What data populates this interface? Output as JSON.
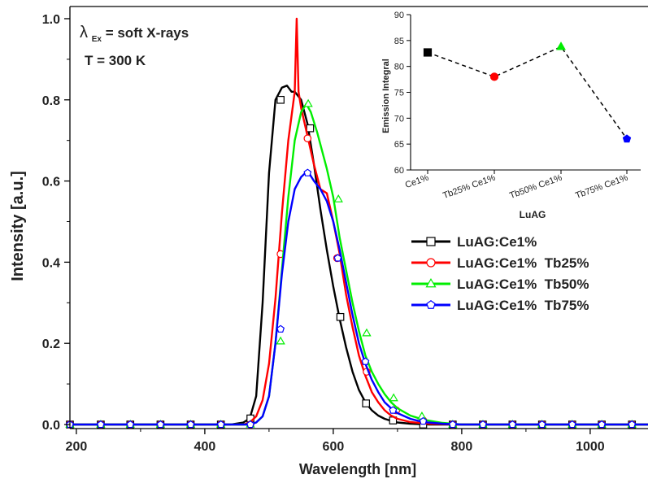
{
  "chart_data": [
    {
      "type": "line",
      "xlabel": "Wavelength [nm]",
      "ylabel": "Intensity [a.u.]",
      "xlim": [
        190,
        1090
      ],
      "ylim": [
        -0.01,
        1.03
      ],
      "xticks": [
        200,
        400,
        600,
        800,
        1000
      ],
      "yticks": [
        0.0,
        0.2,
        0.4,
        0.6,
        0.8,
        1.0
      ],
      "ytick_labels": [
        "0.0",
        "0.2",
        "0.4",
        "0.6",
        "0.8",
        "1.0"
      ],
      "annotations": {
        "excitation_symbol": "λ",
        "excitation_sub": "Ex",
        "excitation_rest": "= soft X-rays",
        "temperature": "T = 300 K"
      },
      "legend_position": "center-right",
      "grid": false,
      "series": [
        {
          "name": "LuAG:Ce1%",
          "color": "#000000",
          "marker": "square",
          "x": [
            190,
            440,
            460,
            470,
            480,
            490,
            500,
            510,
            520,
            528,
            535,
            540,
            550,
            560,
            570,
            580,
            590,
            600,
            610,
            620,
            630,
            640,
            650,
            660,
            670,
            680,
            690,
            700,
            720,
            750,
            800,
            1090
          ],
          "y": [
            0.0,
            0.0,
            0.005,
            0.015,
            0.07,
            0.3,
            0.62,
            0.8,
            0.83,
            0.835,
            0.82,
            0.82,
            0.8,
            0.74,
            0.64,
            0.53,
            0.43,
            0.34,
            0.26,
            0.19,
            0.13,
            0.085,
            0.055,
            0.035,
            0.022,
            0.014,
            0.009,
            0.005,
            0.002,
            0.0,
            0.0,
            0.0
          ],
          "marker_x": [
            190,
            238,
            284,
            331,
            378,
            425,
            471,
            518,
            564,
            611,
            651,
            693,
            740,
            786,
            833,
            879,
            925,
            972,
            1018,
            1065
          ],
          "marker_y": [
            0.0,
            0.0,
            0.0,
            0.0,
            0.0,
            0.0,
            0.015,
            0.8,
            0.73,
            0.265,
            0.052,
            0.01,
            0.0,
            0.0,
            0.0,
            0.0,
            0.0,
            0.0,
            0.0,
            0.0
          ]
        },
        {
          "name": "LuAG:Ce1%  Tb25%",
          "color": "#ff0000",
          "marker": "circle",
          "x": [
            190,
            460,
            470,
            480,
            490,
            500,
            510,
            520,
            530,
            540,
            543,
            546,
            550,
            560,
            570,
            580,
            590,
            600,
            610,
            620,
            630,
            640,
            650,
            660,
            670,
            680,
            690,
            700,
            720,
            750,
            800,
            1090
          ],
          "y": [
            0.0,
            0.0,
            0.005,
            0.02,
            0.06,
            0.15,
            0.31,
            0.52,
            0.7,
            0.82,
            1.0,
            0.82,
            0.78,
            0.71,
            0.64,
            0.58,
            0.57,
            0.5,
            0.42,
            0.32,
            0.24,
            0.17,
            0.12,
            0.08,
            0.055,
            0.035,
            0.022,
            0.014,
            0.006,
            0.002,
            0.0,
            0.0
          ],
          "marker_x": [
            190,
            238,
            284,
            331,
            378,
            425,
            471,
            518,
            560,
            606,
            652,
            698,
            740,
            786,
            833,
            879,
            925,
            972,
            1018,
            1065
          ],
          "marker_y": [
            0.0,
            0.0,
            0.0,
            0.0,
            0.0,
            0.0,
            0.0,
            0.42,
            0.705,
            0.41,
            0.13,
            0.035,
            0.01,
            0.0,
            0.0,
            0.0,
            0.0,
            0.0,
            0.0,
            0.0
          ]
        },
        {
          "name": "LuAG:Ce1%  Tb50%",
          "color": "#00ee00",
          "marker": "triangle",
          "x": [
            190,
            470,
            480,
            490,
            500,
            510,
            520,
            530,
            540,
            550,
            558,
            565,
            575,
            590,
            600,
            610,
            620,
            630,
            640,
            650,
            660,
            670,
            680,
            690,
            700,
            720,
            740,
            770,
            800,
            1090
          ],
          "y": [
            0.0,
            0.0,
            0.005,
            0.02,
            0.07,
            0.2,
            0.38,
            0.56,
            0.7,
            0.77,
            0.79,
            0.77,
            0.72,
            0.63,
            0.56,
            0.46,
            0.38,
            0.3,
            0.23,
            0.17,
            0.13,
            0.1,
            0.075,
            0.055,
            0.04,
            0.022,
            0.012,
            0.004,
            0.0,
            0.0
          ],
          "marker_x": [
            190,
            238,
            284,
            331,
            378,
            425,
            471,
            518,
            561,
            608,
            652,
            694,
            738,
            786,
            833,
            879,
            925,
            972,
            1018,
            1065
          ],
          "marker_y": [
            0.0,
            0.0,
            0.0,
            0.0,
            0.0,
            0.0,
            0.0,
            0.205,
            0.79,
            0.555,
            0.225,
            0.065,
            0.02,
            0.0,
            0.0,
            0.0,
            0.0,
            0.0,
            0.0,
            0.0
          ]
        },
        {
          "name": "LuAG:Ce1%  Tb75%",
          "color": "#0000ff",
          "marker": "pentagon",
          "x": [
            190,
            470,
            480,
            490,
            500,
            510,
            520,
            530,
            540,
            550,
            560,
            570,
            580,
            590,
            600,
            610,
            620,
            630,
            640,
            650,
            660,
            670,
            680,
            690,
            700,
            720,
            740,
            770,
            800,
            1090
          ],
          "y": [
            0.0,
            0.0,
            0.005,
            0.02,
            0.07,
            0.2,
            0.37,
            0.5,
            0.58,
            0.61,
            0.625,
            0.6,
            0.58,
            0.55,
            0.5,
            0.43,
            0.35,
            0.27,
            0.2,
            0.15,
            0.11,
            0.08,
            0.055,
            0.04,
            0.028,
            0.014,
            0.006,
            0.002,
            0.0,
            0.0
          ],
          "marker_x": [
            190,
            238,
            284,
            331,
            378,
            425,
            471,
            518,
            560,
            607,
            650,
            693,
            740,
            786,
            833,
            879,
            925,
            972,
            1018,
            1065
          ],
          "marker_y": [
            0.0,
            0.0,
            0.0,
            0.0,
            0.0,
            0.0,
            0.0,
            0.235,
            0.62,
            0.41,
            0.155,
            0.035,
            0.008,
            0.0,
            0.0,
            0.0,
            0.0,
            0.0,
            0.0,
            0.0
          ]
        }
      ]
    },
    {
      "type": "scatter",
      "xlabel": "LuAG",
      "ylabel": "Emission Integral",
      "ylim": [
        60,
        90
      ],
      "yticks": [
        60,
        65,
        70,
        75,
        80,
        85,
        90
      ],
      "categories": [
        "Ce1%",
        "Tb25% Ce1%",
        "Tb50% Ce1%",
        "Tb75% Ce1%"
      ],
      "connector": "dashed",
      "points": [
        {
          "category": "Ce1%",
          "value": 82.7,
          "color": "#000000",
          "marker": "square"
        },
        {
          "category": "Tb25% Ce1%",
          "value": 78.0,
          "color": "#ff0000",
          "marker": "circle"
        },
        {
          "category": "Tb50% Ce1%",
          "value": 83.8,
          "color": "#00ee00",
          "marker": "triangle"
        },
        {
          "category": "Tb75% Ce1%",
          "value": 66.0,
          "color": "#0000ff",
          "marker": "pentagon"
        }
      ]
    }
  ]
}
